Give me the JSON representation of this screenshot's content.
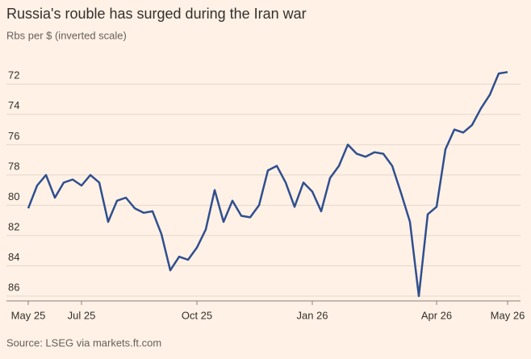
{
  "chart_data": {
    "type": "line",
    "title": "Russia's rouble has surged during the Iran war",
    "subtitle": "Rbs per $ (inverted scale)",
    "source": "Source: LSEG via markets.ft.com",
    "categories": [
      "May 25",
      null,
      null,
      null,
      null,
      null,
      "Jul 25",
      null,
      null,
      null,
      null,
      null,
      null,
      null,
      null,
      null,
      null,
      null,
      null,
      "Oct 25",
      null,
      null,
      null,
      null,
      null,
      null,
      null,
      null,
      null,
      null,
      null,
      null,
      "Jan 26",
      null,
      null,
      null,
      null,
      null,
      null,
      null,
      null,
      null,
      null,
      null,
      null,
      null,
      "Apr 26",
      null,
      null,
      null,
      null,
      null,
      null,
      null,
      "May 26"
    ],
    "series": [
      {
        "name": "Rbs per $",
        "color": "#2f4f8f",
        "values": [
          80.2,
          78.7,
          78.0,
          79.5,
          78.5,
          78.3,
          78.7,
          78.0,
          78.5,
          81.1,
          79.7,
          79.5,
          80.2,
          80.5,
          80.4,
          81.9,
          84.3,
          83.4,
          83.6,
          82.8,
          81.6,
          79.0,
          81.1,
          79.7,
          80.7,
          80.8,
          80.0,
          77.7,
          77.4,
          78.5,
          80.1,
          78.5,
          79.1,
          80.4,
          78.2,
          77.4,
          76.0,
          76.6,
          76.8,
          76.5,
          76.6,
          77.4,
          79.2,
          81.1,
          86.0,
          80.6,
          80.1,
          76.3,
          75.0,
          75.2,
          74.7,
          73.6,
          72.7,
          71.3,
          71.2
        ]
      }
    ],
    "ylim": [
      86,
      71
    ],
    "yticks": [
      72,
      74,
      76,
      78,
      80,
      82,
      84,
      86
    ],
    "grid": true
  }
}
